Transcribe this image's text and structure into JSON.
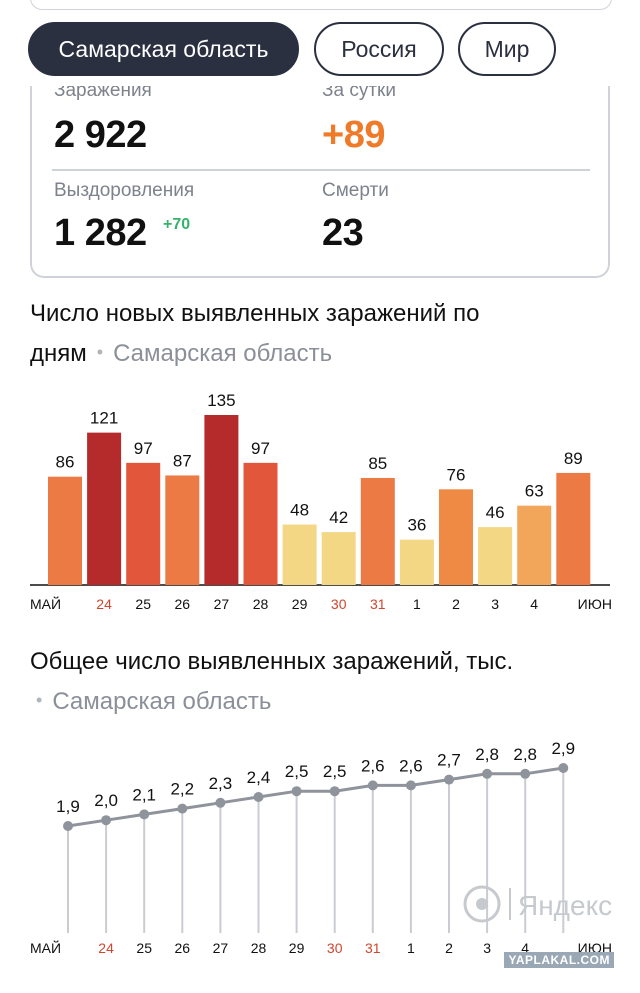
{
  "tabs": [
    {
      "label": "Самарская область",
      "active": true
    },
    {
      "label": "Россия",
      "active": false
    },
    {
      "label": "Мир",
      "active": false
    }
  ],
  "stats": {
    "infections_label": "Заражения",
    "infections_value": "2 922",
    "day_label": "За сутки",
    "day_value": "+89",
    "recovered_label": "Выздоровления",
    "recovered_value": "1 282",
    "recovered_delta": "+70",
    "deaths_label": "Смерти",
    "deaths_value": "23"
  },
  "section1": {
    "title_line1": "Число новых выявленных заражений по",
    "title_line2": "дням",
    "region": "Самарская область"
  },
  "section2": {
    "title": "Общее число выявленных заражений, тыс.",
    "region": "Самарская область"
  },
  "watermark": {
    "logo_text": "Яндекс",
    "site": "YAPLAKAL.COM"
  },
  "colors": {
    "dark_navy": "#2b3040",
    "orange_accent": "#ee7a2a",
    "green_delta": "#35b36b",
    "weekend_red": "#d0452e"
  },
  "chart_data": [
    {
      "type": "bar",
      "title": "Число новых выявленных заражений по дням",
      "categories": [
        "МАЙ",
        "24",
        "25",
        "26",
        "27",
        "28",
        "29",
        "30",
        "31",
        "1",
        "2",
        "3",
        "4",
        "ИЮН"
      ],
      "values": [
        86,
        121,
        97,
        87,
        135,
        97,
        48,
        42,
        85,
        36,
        76,
        46,
        63,
        89
      ],
      "weekend_labels": [
        "24",
        "30",
        "31"
      ],
      "ylim": [
        0,
        135
      ]
    },
    {
      "type": "line",
      "title": "Общее число выявленных заражений, тыс.",
      "categories": [
        "МАЙ",
        "24",
        "25",
        "26",
        "27",
        "28",
        "29",
        "30",
        "31",
        "1",
        "2",
        "3",
        "4",
        "ИЮН"
      ],
      "values": [
        1.9,
        2.0,
        2.1,
        2.2,
        2.3,
        2.4,
        2.5,
        2.5,
        2.6,
        2.6,
        2.7,
        2.8,
        2.8,
        2.9
      ],
      "value_labels": [
        "1,9",
        "2,0",
        "2,1",
        "2,2",
        "2,3",
        "2,4",
        "2,5",
        "2,5",
        "2,6",
        "2,6",
        "2,7",
        "2,8",
        "2,8",
        "2,9"
      ],
      "weekend_labels": [
        "24",
        "30",
        "31"
      ]
    }
  ]
}
